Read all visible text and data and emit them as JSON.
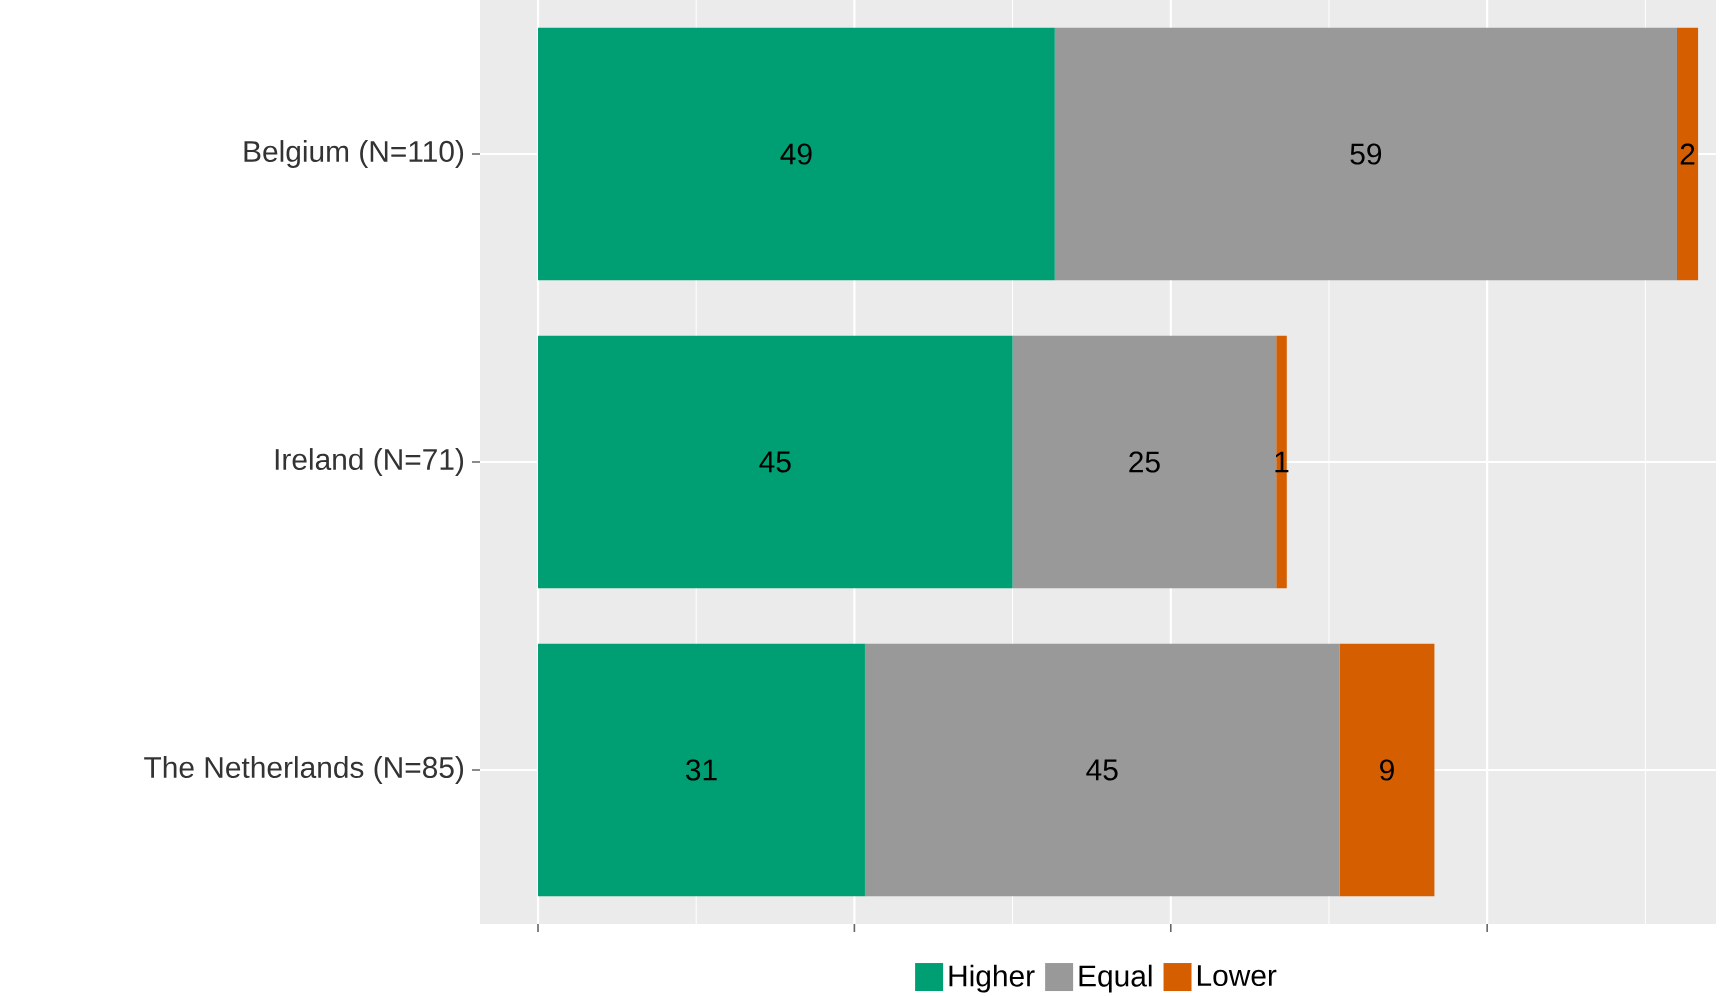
{
  "chart_data": {
    "type": "bar",
    "orientation": "horizontal",
    "stacked": true,
    "categories": [
      "Belgium (N=110)",
      "Ireland (N=71)",
      "The Netherlands (N=85)"
    ],
    "series": [
      {
        "name": "Higher",
        "color": "#009e73",
        "values": [
          49,
          45,
          31
        ]
      },
      {
        "name": "Equal",
        "color": "#999999",
        "values": [
          59,
          25,
          45
        ]
      },
      {
        "name": "Lower",
        "color": "#d55e00",
        "values": [
          2,
          1,
          9
        ]
      }
    ],
    "xlim": [
      -5.5,
      111.7
    ],
    "xticks": [
      {
        "value": 0,
        "label": null
      },
      {
        "value": 30,
        "label": null
      },
      {
        "value": 60,
        "label": null
      },
      {
        "value": 90,
        "label": null
      }
    ],
    "tick_labels": "y",
    "grid": true,
    "legend": "bottom",
    "data_labels": true
  }
}
